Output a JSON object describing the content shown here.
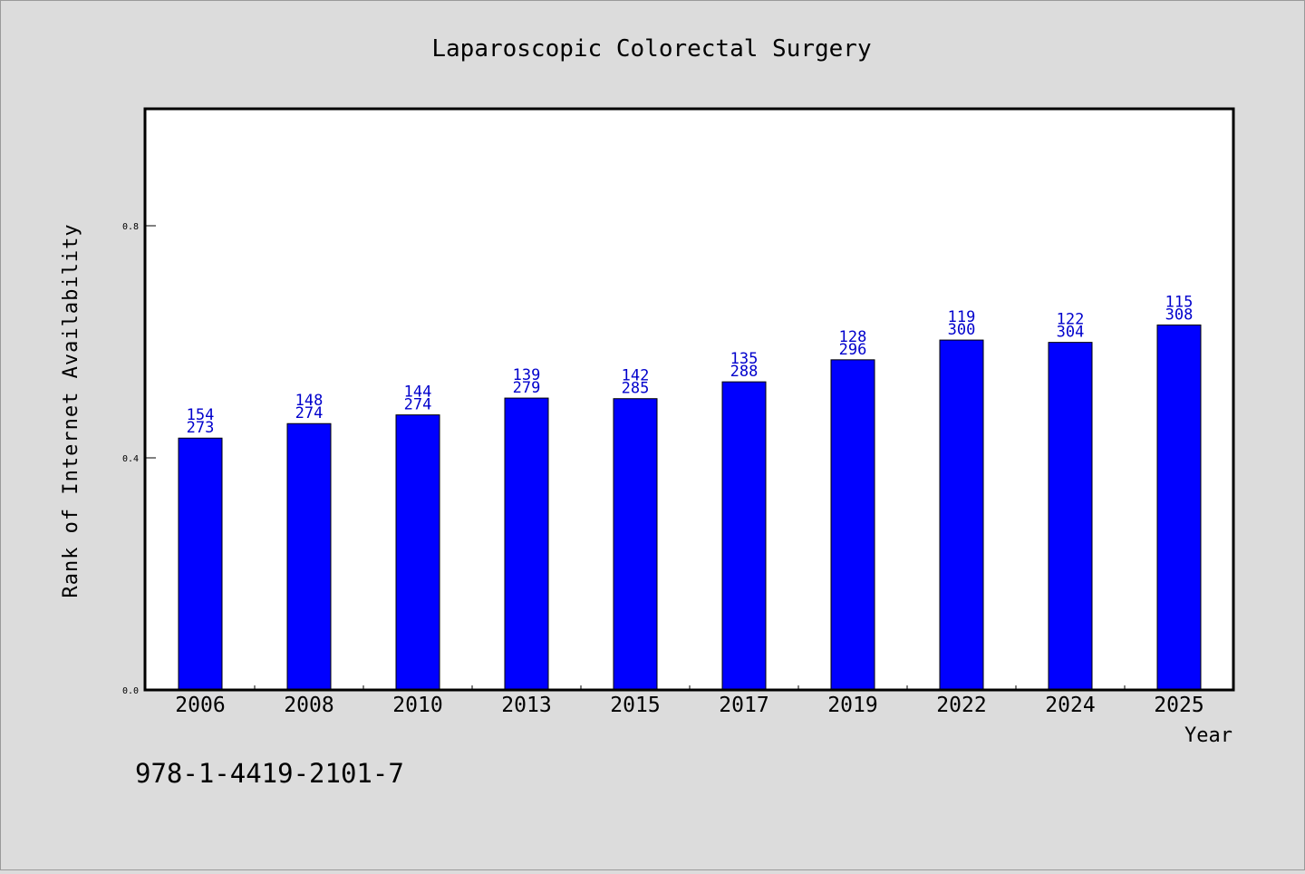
{
  "chart_data": {
    "type": "bar",
    "title": "Laparoscopic Colorectal Surgery",
    "xlabel": "Year",
    "ylabel": "Rank of Internet Availability",
    "categories": [
      "2006",
      "2008",
      "2010",
      "2013",
      "2015",
      "2017",
      "2019",
      "2022",
      "2024",
      "2025"
    ],
    "values": [
      0.434,
      0.459,
      0.474,
      0.503,
      0.502,
      0.531,
      0.569,
      0.603,
      0.599,
      0.629
    ],
    "labels_top": [
      "154",
      "148",
      "144",
      "139",
      "142",
      "135",
      "128",
      "119",
      "122",
      "115"
    ],
    "labels_bottom": [
      "273",
      "274",
      "274",
      "279",
      "285",
      "288",
      "296",
      "300",
      "304",
      "308"
    ],
    "ylim": [
      0,
      1.0
    ],
    "yticks": [
      0.0,
      0.4,
      0.8
    ],
    "ytick_labels": [
      "0.0",
      "0.4",
      "0.8"
    ],
    "bar_color": "#0000ff",
    "label_color": "#0000cc",
    "grid": false
  },
  "footer": {
    "text": "978-1-4419-2101-7"
  }
}
